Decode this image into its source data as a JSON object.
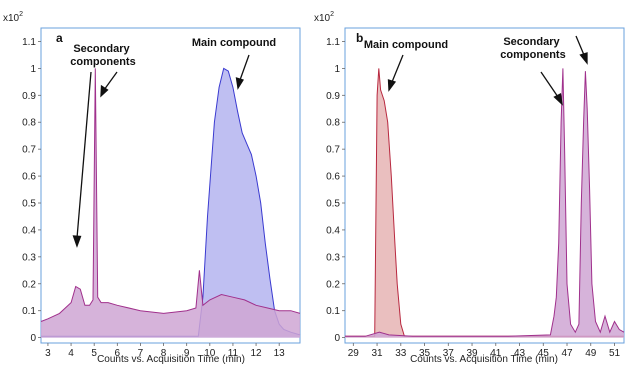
{
  "chart_data": [
    {
      "type": "area",
      "panel_label": "a",
      "y_multiplier_base": "x10",
      "y_multiplier_exp": "2",
      "xlabel": "Counts vs. Acquisition Time (min)",
      "xlim": [
        2.7,
        13.9
      ],
      "ylim": [
        -0.02,
        1.15
      ],
      "xticks": [
        3,
        4,
        5,
        6,
        7,
        8,
        9,
        10,
        11,
        12,
        13
      ],
      "yticks": [
        0,
        0.1,
        0.2,
        0.3,
        0.4,
        0.5,
        0.6,
        0.7,
        0.8,
        0.9,
        1,
        1.1
      ],
      "ytick_labels": [
        "0",
        "0.1",
        "0.2",
        "0.3",
        "0.4",
        "0.5",
        "0.6",
        "0.7",
        "0.8",
        "0.9",
        "1",
        "1.1"
      ],
      "annotations": [
        {
          "lines": [
            "Secondary",
            "components"
          ]
        },
        {
          "lines": [
            "Main compound"
          ]
        }
      ],
      "colors": {
        "blue_line": "#3a3ad0",
        "blue_fill": "#b4b4f0",
        "magenta_line": "#a0308c",
        "magenta_fill": "#cfa6d4"
      },
      "series": [
        {
          "color_key": "blue",
          "x": [
            2.7,
            9.5,
            9.7,
            9.9,
            10.2,
            10.4,
            10.6,
            10.8,
            11.0,
            11.2,
            11.4,
            11.6,
            11.8,
            12.0,
            12.2,
            12.4,
            12.6,
            12.8,
            13.0,
            13.2,
            13.5,
            13.9
          ],
          "y": [
            0.005,
            0.005,
            0.15,
            0.45,
            0.8,
            0.93,
            1.0,
            0.99,
            0.93,
            0.84,
            0.76,
            0.72,
            0.68,
            0.6,
            0.5,
            0.35,
            0.22,
            0.1,
            0.05,
            0.03,
            0.02,
            0.01
          ]
        },
        {
          "color_key": "magenta",
          "x": [
            2.7,
            3.0,
            3.5,
            4.0,
            4.2,
            4.4,
            4.6,
            4.8,
            4.95,
            5.05,
            5.15,
            5.3,
            5.6,
            6.0,
            7.0,
            8.0,
            9.0,
            9.4,
            9.55,
            9.7,
            10.0,
            10.5,
            11.0,
            11.5,
            12.0,
            12.5,
            13.0,
            13.5,
            13.9
          ],
          "y": [
            0.06,
            0.07,
            0.09,
            0.13,
            0.19,
            0.18,
            0.12,
            0.12,
            0.14,
            1.0,
            0.15,
            0.13,
            0.13,
            0.12,
            0.1,
            0.09,
            0.1,
            0.11,
            0.25,
            0.12,
            0.14,
            0.16,
            0.15,
            0.14,
            0.12,
            0.11,
            0.1,
            0.1,
            0.09
          ]
        }
      ]
    },
    {
      "type": "area",
      "panel_label": "b",
      "y_multiplier_base": "x10",
      "y_multiplier_exp": "2",
      "xlabel": "Counts vs. Acquisition Time (min)",
      "xlim": [
        28.3,
        51.8
      ],
      "ylim": [
        -0.02,
        1.15
      ],
      "xticks": [
        29,
        31,
        33,
        35,
        37,
        39,
        41,
        43,
        45,
        47,
        49,
        51
      ],
      "yticks": [
        0,
        0.1,
        0.2,
        0.3,
        0.4,
        0.5,
        0.6,
        0.7,
        0.8,
        0.9,
        1,
        1.1
      ],
      "ytick_labels": [
        "0",
        "0.1",
        "0.2",
        "0.3",
        "0.4",
        "0.5",
        "0.6",
        "0.7",
        "0.8",
        "0.9",
        "1",
        "1.1"
      ],
      "annotations": [
        {
          "lines": [
            "Main compound"
          ]
        },
        {
          "lines": [
            "Secondary",
            "components"
          ]
        }
      ],
      "colors": {
        "red_line": "#b8283f",
        "red_fill": "#e6b4b4",
        "magenta_line": "#a0308c",
        "magenta_fill": "#cfa6d4"
      },
      "series": [
        {
          "color_key": "red",
          "x": [
            28.3,
            30.8,
            31.0,
            31.15,
            31.3,
            31.6,
            31.9,
            32.2,
            32.5,
            32.7,
            33.0,
            33.3,
            51.8
          ],
          "y": [
            0.005,
            0.005,
            0.9,
            1.0,
            0.92,
            0.88,
            0.8,
            0.6,
            0.35,
            0.2,
            0.05,
            0.005,
            0.005
          ]
        },
        {
          "color_key": "magenta",
          "x": [
            28.3,
            30.0,
            31.2,
            32.0,
            34.0,
            38.0,
            42.0,
            45.6,
            45.9,
            46.1,
            46.3,
            46.5,
            46.65,
            46.8,
            47.0,
            47.3,
            47.7,
            48.0,
            48.2,
            48.4,
            48.55,
            48.7,
            48.9,
            49.1,
            49.4,
            49.8,
            50.2,
            50.6,
            51.0,
            51.4,
            51.8
          ],
          "y": [
            0.005,
            0.005,
            0.02,
            0.01,
            0.005,
            0.005,
            0.005,
            0.01,
            0.08,
            0.15,
            0.35,
            0.8,
            1.0,
            0.7,
            0.2,
            0.05,
            0.02,
            0.05,
            0.5,
            0.8,
            0.99,
            0.85,
            0.55,
            0.2,
            0.06,
            0.02,
            0.08,
            0.02,
            0.06,
            0.03,
            0.02
          ]
        }
      ]
    }
  ]
}
